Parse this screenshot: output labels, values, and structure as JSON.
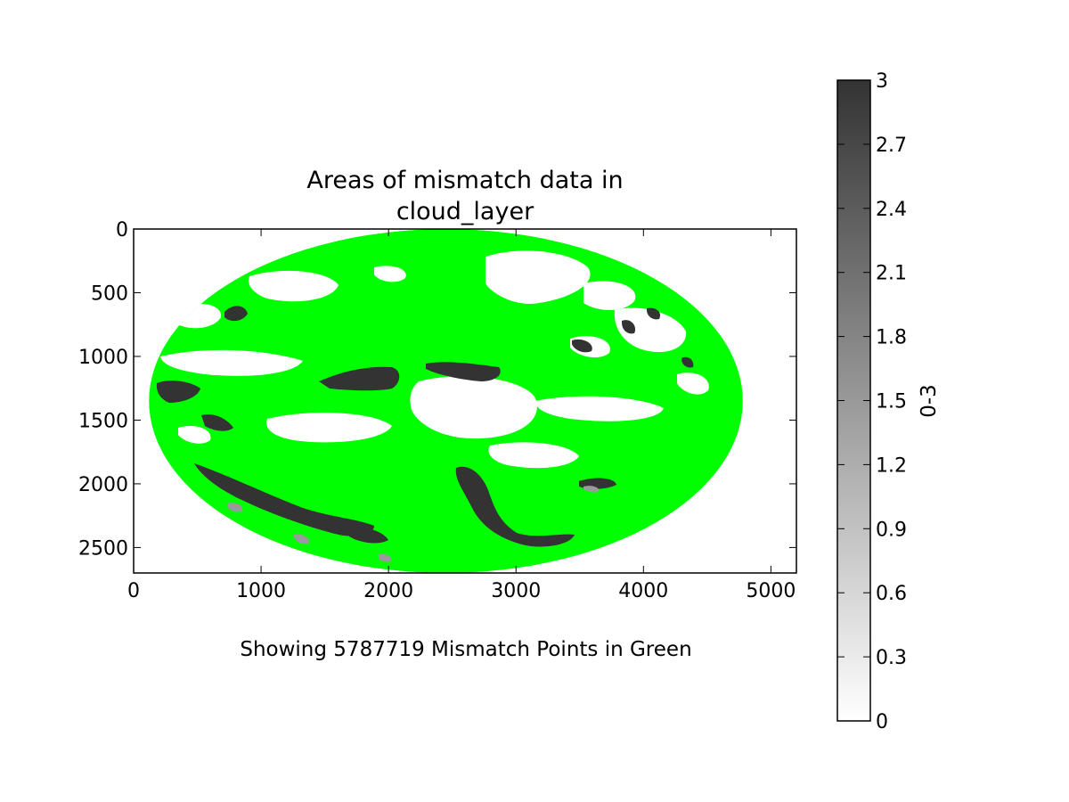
{
  "chart_data": {
    "type": "heatmap",
    "title": "Areas of mismatch data in\ncloud_layer",
    "title_lines": [
      "Areas of mismatch data in",
      "cloud_layer"
    ],
    "xlabel": "Showing 5787719 Mismatch Points in Green",
    "ylabel": "",
    "xlim": [
      0,
      5200
    ],
    "ylim": [
      2700,
      0
    ],
    "x_ticks": [
      0,
      1000,
      2000,
      3000,
      4000,
      5000
    ],
    "y_ticks": [
      0,
      500,
      1000,
      1500,
      2000,
      2500
    ],
    "image_extent": {
      "x": [
        0,
        4750
      ],
      "y": [
        0,
        2700
      ]
    },
    "disk": {
      "center_x": 2450,
      "center_y": 1350,
      "radius_x": 2330,
      "radius_y": 1350
    },
    "mismatch_color": "#00ff00",
    "mismatch_points": 5787719,
    "colorbar": {
      "label": "0-3",
      "range": [
        0,
        3
      ],
      "ticks": [
        "0",
        "0.3",
        "0.6",
        "0.9",
        "1.2",
        "1.5",
        "1.8",
        "2.1",
        "2.4",
        "2.7",
        "3"
      ],
      "colormap": [
        "#ffffff",
        "#333333"
      ]
    },
    "value_classes": [
      {
        "value": 0,
        "color": "#ffffff"
      },
      {
        "value": 2,
        "color": "#9a9a9a"
      },
      {
        "value": 3,
        "color": "#333333"
      }
    ],
    "grid": false
  }
}
